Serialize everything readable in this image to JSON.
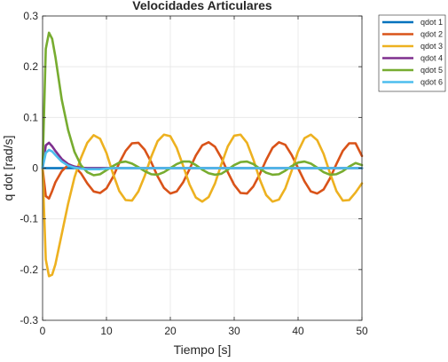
{
  "chart_data": {
    "type": "line",
    "title": "Velocidades Articulares",
    "xlabel": "Tiempo [s]",
    "ylabel": "q dot [rad/s]",
    "xlim": [
      0,
      50
    ],
    "ylim": [
      -0.3,
      0.3
    ],
    "xticks": [
      0,
      10,
      20,
      30,
      40,
      50
    ],
    "yticks": [
      -0.3,
      -0.2,
      -0.1,
      0,
      0.1,
      0.2,
      0.3
    ],
    "xtick_labels": [
      "0",
      "10",
      "20",
      "30",
      "40",
      "50"
    ],
    "ytick_labels": [
      "-0.3",
      "-0.2",
      "-0.1",
      "0",
      "0.1",
      "0.2",
      "0.3"
    ],
    "grid": true,
    "legend_position": "top-right-outside",
    "x": [
      0,
      0.5,
      1,
      1.5,
      2,
      3,
      4,
      5,
      6,
      7,
      8,
      9,
      10,
      11,
      12,
      13,
      14,
      15,
      16,
      17,
      18,
      19,
      20,
      21,
      22,
      23,
      24,
      25,
      26,
      27,
      28,
      29,
      30,
      31,
      32,
      33,
      34,
      35,
      36,
      37,
      38,
      39,
      40,
      41,
      42,
      43,
      44,
      45,
      46,
      47,
      48,
      49,
      50
    ],
    "series": [
      {
        "name": "qdot 1",
        "color": "#0072BD",
        "values": [
          0,
          0,
          0,
          0,
          0,
          0,
          0,
          0,
          0,
          0,
          0,
          0,
          0,
          0,
          0,
          0,
          0,
          0,
          0,
          0,
          0,
          0,
          0,
          0,
          0,
          0,
          0,
          0,
          0,
          0,
          0,
          0,
          0,
          0,
          0,
          0,
          0,
          0,
          0,
          0,
          0,
          0,
          0,
          0,
          0,
          0,
          0,
          0,
          0,
          0,
          0,
          0,
          0
        ]
      },
      {
        "name": "qdot 2",
        "color": "#D95319",
        "values": [
          0,
          -0.055,
          -0.06,
          -0.045,
          -0.028,
          -0.006,
          0.006,
          0.003,
          -0.01,
          -0.03,
          -0.046,
          -0.049,
          -0.04,
          -0.018,
          0.01,
          0.034,
          0.049,
          0.05,
          0.036,
          0.012,
          -0.016,
          -0.039,
          -0.05,
          -0.046,
          -0.028,
          -0.002,
          0.025,
          0.045,
          0.051,
          0.042,
          0.02,
          -0.008,
          -0.033,
          -0.049,
          -0.05,
          -0.036,
          -0.012,
          0.016,
          0.04,
          0.051,
          0.046,
          0.026,
          0,
          -0.026,
          -0.046,
          -0.05,
          -0.042,
          -0.02,
          0.008,
          0.034,
          0.049,
          0.049,
          0.024
        ]
      },
      {
        "name": "qdot 3",
        "color": "#EDB120",
        "values": [
          0,
          -0.18,
          -0.213,
          -0.21,
          -0.19,
          -0.13,
          -0.07,
          -0.018,
          0.02,
          0.05,
          0.065,
          0.058,
          0.03,
          -0.01,
          -0.045,
          -0.063,
          -0.064,
          -0.046,
          -0.015,
          0.022,
          0.053,
          0.066,
          0.063,
          0.04,
          0.005,
          -0.032,
          -0.058,
          -0.066,
          -0.057,
          -0.03,
          0.008,
          0.043,
          0.064,
          0.066,
          0.05,
          0.017,
          -0.022,
          -0.053,
          -0.066,
          -0.062,
          -0.04,
          -0.005,
          0.033,
          0.059,
          0.066,
          0.055,
          0.028,
          -0.01,
          -0.045,
          -0.064,
          -0.063,
          -0.048,
          -0.03
        ]
      },
      {
        "name": "qdot 4",
        "color": "#7E2F8E",
        "values": [
          0,
          0.045,
          0.05,
          0.043,
          0.034,
          0.018,
          0.008,
          0.003,
          0.001,
          0,
          0,
          0,
          0,
          0,
          0,
          0,
          0,
          0,
          0,
          0,
          0,
          0,
          0,
          0,
          0,
          0,
          0,
          0,
          0,
          0,
          0,
          0,
          0,
          0,
          0,
          0,
          0,
          0,
          0,
          0,
          0,
          0,
          0,
          0,
          0,
          0,
          0,
          0,
          0,
          0,
          0,
          0,
          0
        ]
      },
      {
        "name": "qdot 5",
        "color": "#77AC30",
        "values": [
          0,
          0.235,
          0.267,
          0.255,
          0.22,
          0.135,
          0.075,
          0.032,
          0.006,
          -0.008,
          -0.014,
          -0.012,
          -0.004,
          0.004,
          0.011,
          0.013,
          0.009,
          0.002,
          -0.006,
          -0.012,
          -0.013,
          -0.008,
          0,
          0.008,
          0.013,
          0.013,
          0.006,
          -0.003,
          -0.01,
          -0.013,
          -0.011,
          -0.003,
          0.006,
          0.012,
          0.013,
          0.008,
          -0.001,
          -0.009,
          -0.013,
          -0.012,
          -0.005,
          0.004,
          0.011,
          0.013,
          0.009,
          0.001,
          -0.008,
          -0.013,
          -0.012,
          -0.006,
          0.003,
          0.01,
          0.006
        ]
      },
      {
        "name": "qdot 6",
        "color": "#4DBEEE",
        "values": [
          0,
          0.03,
          0.036,
          0.033,
          0.026,
          0.013,
          0.005,
          0.001,
          -0.001,
          -0.002,
          -0.002,
          -0.002,
          -0.001,
          0,
          0,
          0,
          0,
          0,
          0,
          0,
          0,
          0,
          0,
          0,
          0,
          0,
          0,
          0,
          0,
          0,
          0,
          0,
          0,
          0,
          0,
          0,
          0,
          0,
          0,
          0,
          0,
          0,
          0,
          0,
          0,
          0,
          0,
          0,
          0,
          0,
          0,
          0,
          0
        ]
      }
    ]
  }
}
